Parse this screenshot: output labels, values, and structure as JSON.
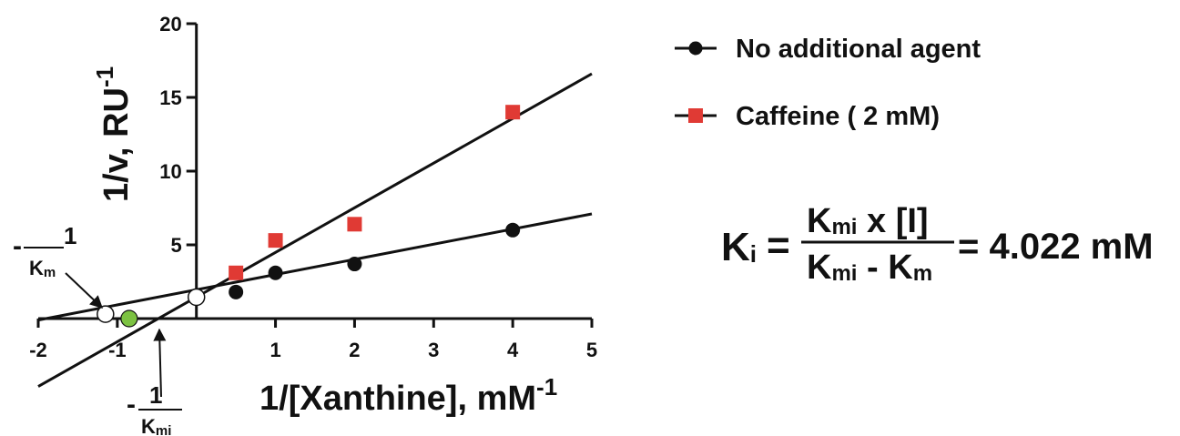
{
  "chart_data": {
    "type": "line",
    "xlabel": "1/[Xanthine], mM",
    "xlabel_sup": "-1",
    "ylabel": "1/v, RU",
    "ylabel_sup": "-1",
    "xlim": [
      -2,
      5
    ],
    "ylim": [
      0,
      20
    ],
    "x_ticks": [
      -2,
      -1,
      1,
      2,
      3,
      4,
      5
    ],
    "x_tick_labels": [
      "-2",
      "-1",
      "1",
      "2",
      "3",
      "4",
      "5"
    ],
    "y_ticks": [
      5,
      10,
      15,
      20
    ],
    "y_tick_labels": [
      "5",
      "10",
      "15",
      "20"
    ],
    "grid": false,
    "legend_position": "top-right",
    "series": [
      {
        "name": "No additional agent",
        "marker": "circle",
        "color": "#111111",
        "x": [
          0.5,
          1,
          2,
          4
        ],
        "y": [
          1.8,
          3.1,
          3.7,
          6.0
        ],
        "fit": {
          "x": [
            -2.0,
            5.0
          ],
          "y": [
            -0.1,
            7.1
          ]
        }
      },
      {
        "name": "Caffeine ( 2 mM)",
        "marker": "square",
        "color": "#e03a34",
        "x": [
          0.5,
          1,
          2,
          4
        ],
        "y": [
          3.1,
          5.3,
          6.4,
          14.0
        ],
        "fit": {
          "x": [
            -2.0,
            5.0
          ],
          "y": [
            -4.6,
            16.6
          ]
        }
      }
    ],
    "annotations": {
      "open_points": [
        {
          "x": -1.15,
          "y": 0.3
        },
        {
          "x": 0.0,
          "y": 1.45
        }
      ],
      "green_point": {
        "x": -0.85,
        "y": 0.0,
        "color": "#7cc242"
      },
      "km_label": {
        "prefix": "-",
        "numerator": "1",
        "denominator": "K",
        "denominator_sub": "m"
      },
      "kmi_label": {
        "prefix": "-",
        "numerator": "1",
        "denominator": "K",
        "denominator_sub": "mi"
      }
    }
  },
  "equation": {
    "lhs": "K",
    "lhs_sub": "i",
    "equals": "=",
    "num_k": "K",
    "num_sub": "mi",
    "num_rest": " x [I]",
    "den_k1": "K",
    "den_sub1": "mi",
    "den_minus": " - ",
    "den_k2": "K",
    "den_sub2": "m",
    "result": "= 4.022 mM"
  }
}
